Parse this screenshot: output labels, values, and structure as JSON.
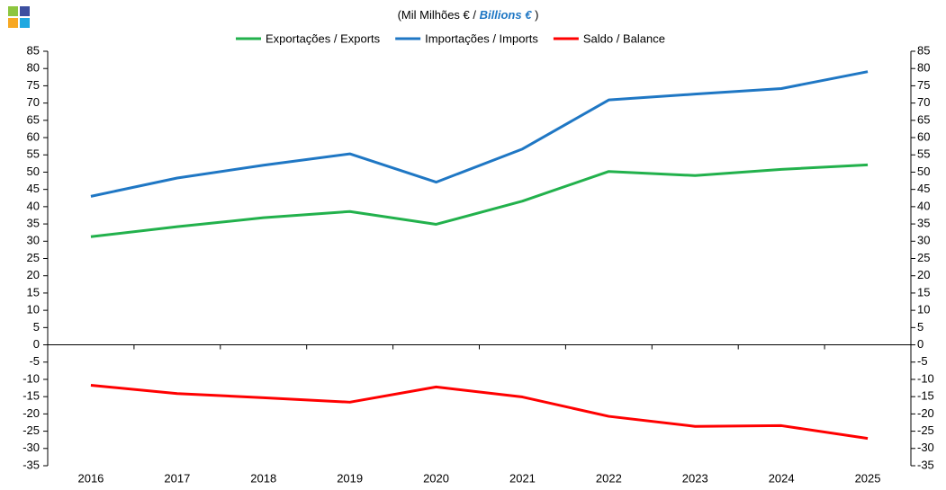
{
  "chart_data": {
    "type": "line",
    "title": "(Mil Milhões € /",
    "title_en": "Billions €",
    "title_close": ")",
    "categories": [
      "2016",
      "2017",
      "2018",
      "2019",
      "2020",
      "2021",
      "2022",
      "2023",
      "2024",
      "2025"
    ],
    "series": [
      {
        "name": "Exportações / Exports",
        "color": "#22b14c",
        "values": [
          31.3,
          34.2,
          36.8,
          38.6,
          34.9,
          41.6,
          50.2,
          49.0,
          50.8,
          52.1
        ]
      },
      {
        "name": "Importações / Imports",
        "color": "#1f77c4",
        "values": [
          43.0,
          48.3,
          52.0,
          55.3,
          47.1,
          56.7,
          70.9,
          72.6,
          74.2,
          79.1
        ]
      },
      {
        "name": "Saldo / Balance",
        "color": "#ff0000",
        "values": [
          -11.7,
          -14.1,
          -15.3,
          -16.6,
          -12.2,
          -15.1,
          -20.7,
          -23.6,
          -23.4,
          -27.1
        ]
      }
    ],
    "ylim": [
      -35,
      85
    ],
    "yticks": [
      -35,
      -30,
      -25,
      -20,
      -15,
      -10,
      -5,
      0,
      5,
      10,
      15,
      20,
      25,
      30,
      35,
      40,
      45,
      50,
      55,
      60,
      65,
      70,
      75,
      80,
      85
    ],
    "y2lim": [
      -35,
      85
    ],
    "y2ticks": [
      -35,
      -30,
      -25,
      -20,
      -15,
      -10,
      -5,
      0,
      5,
      10,
      15,
      20,
      25,
      30,
      35,
      40,
      45,
      50,
      55,
      60,
      65,
      70,
      75,
      80,
      85
    ],
    "legend": "top",
    "grid": false
  }
}
